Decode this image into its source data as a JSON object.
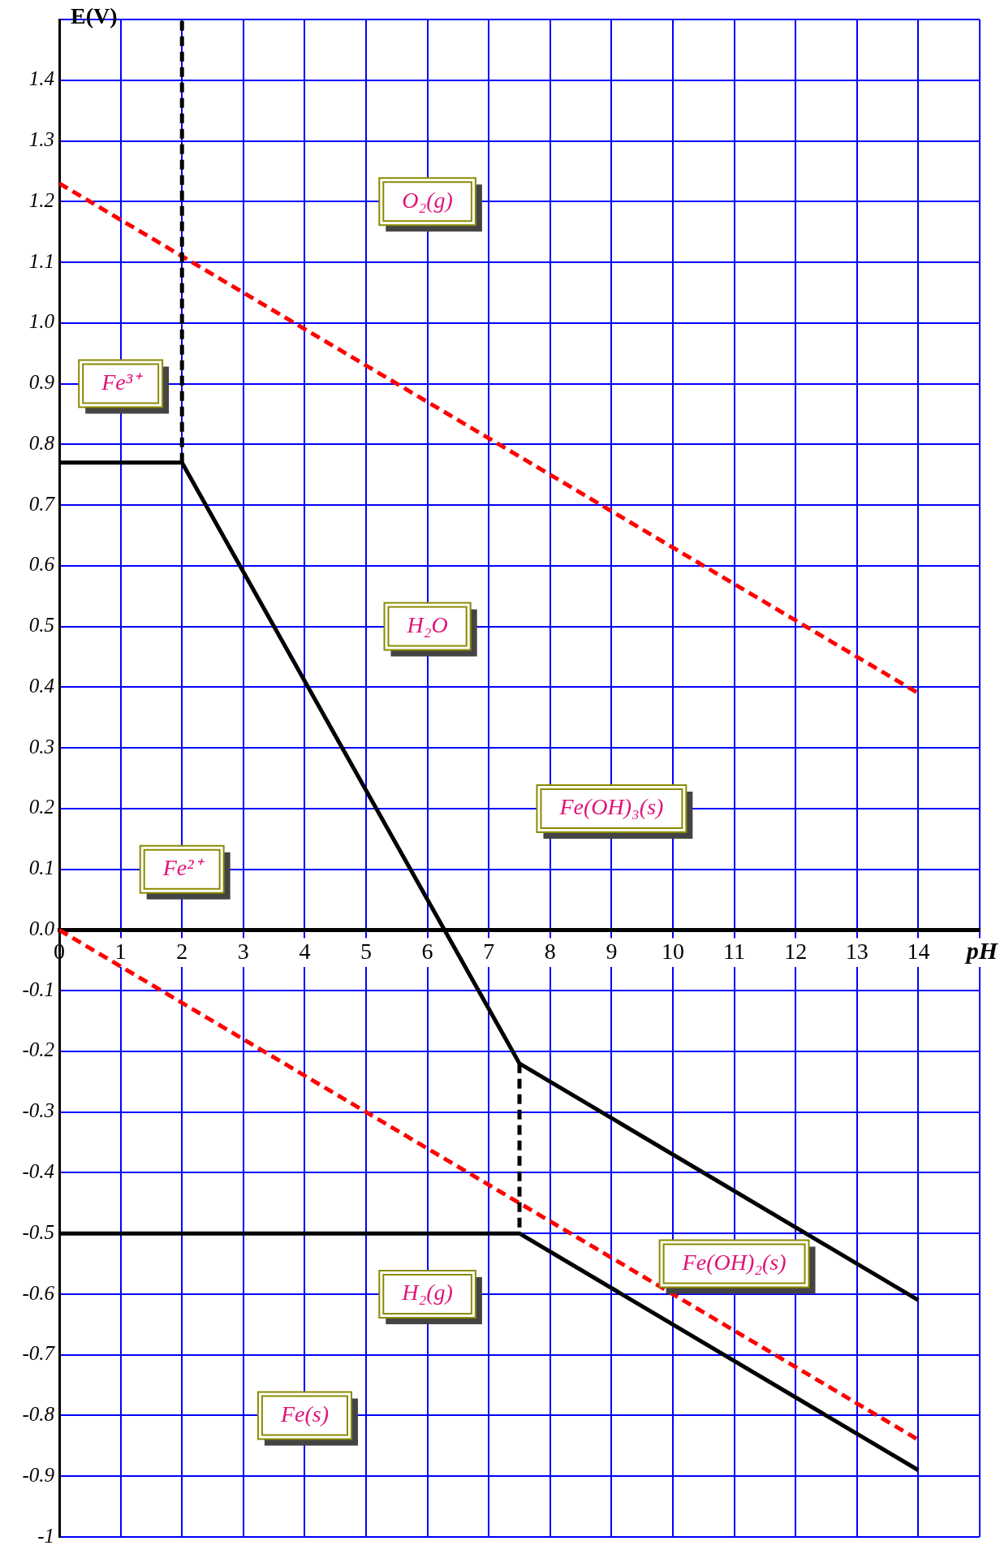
{
  "chart_data": {
    "type": "line",
    "xlabel": "pH",
    "ylabel": "E(V)",
    "xlim": [
      0,
      15
    ],
    "ylim": [
      -1,
      1.5
    ],
    "xticks": [
      0,
      1,
      2,
      3,
      4,
      5,
      6,
      7,
      8,
      9,
      10,
      11,
      12,
      13,
      14,
      {
        "value": 15,
        "label": null
      }
    ],
    "yticks": [
      -1,
      -0.9,
      -0.8,
      -0.7,
      -0.6,
      -0.5,
      -0.4,
      -0.3,
      -0.2,
      -0.1,
      {
        "value": 0,
        "label": "0.0"
      },
      0.1,
      0.2,
      0.3,
      0.4,
      0.5,
      0.6,
      0.7,
      0.8,
      0.9,
      {
        "value": 1,
        "label": "1.0"
      },
      1.1,
      1.2,
      1.3,
      1.4,
      {
        "value": 1.5,
        "label": null
      }
    ],
    "grid": true,
    "legend": false,
    "marker": "none",
    "series": [
      {
        "color": "#000000",
        "line_style": "solid",
        "x": [
          0,
          2,
          7.5,
          14
        ],
        "values": [
          0.77,
          0.77,
          -0.22,
          -0.61
        ]
      },
      {
        "color": "#000000",
        "line_style": "solid",
        "x": [
          0,
          7.5,
          14
        ],
        "values": [
          -0.5,
          -0.5,
          -0.89
        ]
      },
      {
        "color": "#000000",
        "line_style": "dashed",
        "x": [
          2,
          2
        ],
        "values": [
          0.77,
          1.5
        ]
      },
      {
        "color": "#000000",
        "line_style": "dashed",
        "x": [
          7.5,
          7.5
        ],
        "values": [
          -0.22,
          -0.5
        ]
      },
      {
        "color": "#ff0000",
        "line_style": "dashed",
        "x": [
          0,
          14
        ],
        "values": [
          1.23,
          0.39
        ]
      },
      {
        "color": "#ff0000",
        "line_style": "dashed",
        "x": [
          0,
          14
        ],
        "values": [
          0,
          -0.84
        ]
      }
    ],
    "annotations": [
      "O₂(g)",
      "Fe³⁺",
      "H₂O",
      "Fe(OH)₃(s)",
      "Fe²⁺",
      "Fe(OH)₂(s)",
      "H₂(g)",
      "Fe(s)"
    ]
  }
}
